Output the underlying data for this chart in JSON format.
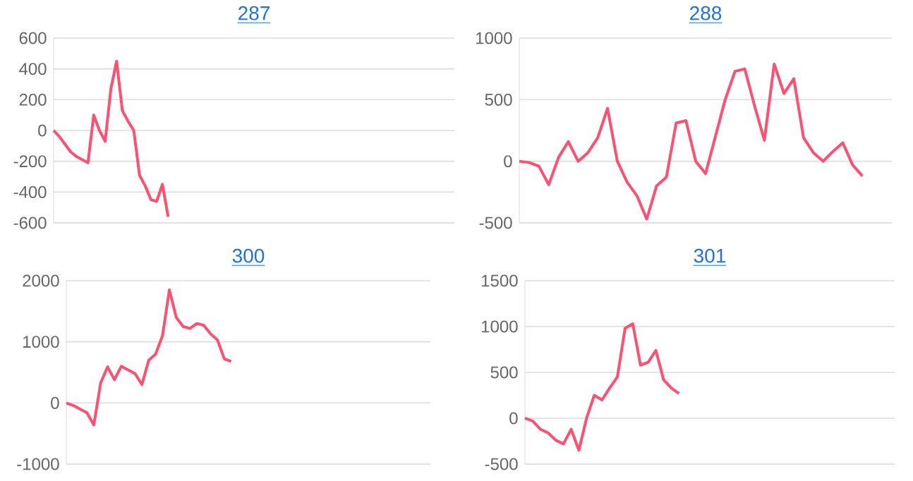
{
  "chart_data": [
    {
      "type": "line",
      "title": "287",
      "categories": [
        null,
        null,
        null,
        null,
        null,
        null,
        null,
        null,
        null,
        null,
        null,
        null,
        null,
        null,
        null,
        null,
        null,
        null,
        null,
        null,
        null,
        null,
        null,
        null,
        null,
        null,
        null,
        null,
        null,
        null,
        null,
        null,
        null,
        null,
        null,
        null,
        null,
        null,
        null,
        null,
        null,
        null,
        null,
        null,
        null,
        null,
        null,
        null,
        null,
        null,
        null,
        null,
        null,
        null,
        null,
        null,
        null,
        null,
        null,
        null,
        null,
        null,
        null,
        null,
        null,
        null,
        null,
        null,
        null,
        null,
        null
      ],
      "series": [
        {
          "color": "#ff5071",
          "values": [
            0,
            -40,
            -90,
            -140,
            -170,
            -190,
            -210,
            100,
            0,
            -70,
            270,
            450,
            130,
            60,
            0,
            -290,
            -360,
            -450,
            -460,
            -350,
            -560,
            null,
            null,
            null,
            null,
            null,
            null,
            null,
            null,
            null,
            null,
            null,
            null,
            null,
            null,
            null,
            null,
            null,
            null,
            null,
            null,
            null,
            null,
            null,
            null,
            null,
            null,
            null,
            null,
            null,
            null,
            null,
            null,
            null,
            null,
            null,
            null,
            null,
            null,
            null,
            null,
            null,
            null,
            null,
            null,
            null,
            null,
            null,
            null,
            null,
            null
          ]
        }
      ],
      "ylim": [
        -600,
        600
      ],
      "yticks": [
        -600,
        -400,
        -200,
        0,
        200,
        400,
        600
      ],
      "grid": "y"
    },
    {
      "type": "line",
      "title": "288",
      "categories": [
        null,
        null,
        null,
        null,
        null,
        null,
        null,
        null,
        null,
        null,
        null,
        null,
        null,
        null,
        null,
        null,
        null,
        null,
        null,
        null,
        null,
        null,
        null,
        null,
        null,
        null,
        null,
        null,
        null,
        null,
        null,
        null,
        null,
        null,
        null,
        null,
        null,
        null,
        null
      ],
      "series": [
        {
          "color": "#ff5071",
          "values": [
            0,
            -10,
            -40,
            -190,
            30,
            160,
            0,
            70,
            190,
            430,
            0,
            -170,
            -280,
            -470,
            -200,
            -130,
            310,
            330,
            0,
            -100,
            200,
            500,
            730,
            750,
            450,
            170,
            790,
            550,
            670,
            190,
            70,
            0,
            80,
            150,
            -30,
            -120,
            null,
            null,
            null
          ]
        }
      ],
      "ylim": [
        -500,
        1000
      ],
      "yticks": [
        -500,
        0,
        500,
        1000
      ],
      "grid": "y"
    },
    {
      "type": "line",
      "title": "300",
      "categories": [
        null,
        null,
        null,
        null,
        null,
        null,
        null,
        null,
        null,
        null,
        null,
        null,
        null,
        null,
        null,
        null,
        null,
        null,
        null,
        null,
        null,
        null,
        null,
        null,
        null,
        null,
        null,
        null,
        null,
        null,
        null,
        null,
        null,
        null,
        null,
        null,
        null,
        null,
        null,
        null,
        null,
        null,
        null,
        null,
        null,
        null,
        null,
        null,
        null,
        null,
        null,
        null,
        null,
        null
      ],
      "series": [
        {
          "color": "#ff5071",
          "values": [
            0,
            -40,
            -100,
            -160,
            -360,
            330,
            590,
            380,
            600,
            540,
            480,
            300,
            700,
            800,
            1100,
            1850,
            1400,
            1250,
            1220,
            1300,
            1270,
            1130,
            1030,
            720,
            680,
            null,
            null,
            null,
            null,
            null,
            null,
            null,
            null,
            null,
            null,
            null,
            null,
            null,
            null,
            null,
            null,
            null,
            null,
            null,
            null,
            null,
            null,
            null,
            null,
            null,
            null,
            null,
            null,
            null
          ]
        }
      ],
      "ylim": [
        -1000,
        2000
      ],
      "yticks": [
        -1000,
        0,
        1000,
        2000
      ],
      "grid": "y"
    },
    {
      "type": "line",
      "title": "301",
      "categories": [
        null,
        null,
        null,
        null,
        null,
        null,
        null,
        null,
        null,
        null,
        null,
        null,
        null,
        null,
        null,
        null,
        null,
        null,
        null,
        null,
        null,
        null,
        null,
        null,
        null,
        null,
        null,
        null,
        null,
        null,
        null,
        null,
        null,
        null,
        null,
        null,
        null,
        null,
        null,
        null,
        null,
        null,
        null,
        null,
        null,
        null,
        null,
        null,
        null
      ],
      "series": [
        {
          "color": "#ff5071",
          "values": [
            0,
            -30,
            -120,
            -160,
            -240,
            -280,
            -120,
            -350,
            0,
            250,
            200,
            330,
            450,
            980,
            1030,
            580,
            610,
            740,
            420,
            330,
            270,
            null,
            null,
            null,
            null,
            null,
            null,
            null,
            null,
            null,
            null,
            null,
            null,
            null,
            null,
            null,
            null,
            null,
            null,
            null,
            null,
            null,
            null,
            null,
            null,
            null,
            null,
            null,
            null
          ]
        }
      ],
      "ylim": [
        -500,
        1500
      ],
      "yticks": [
        -500,
        0,
        500,
        1000,
        1500
      ],
      "grid": "y"
    }
  ]
}
